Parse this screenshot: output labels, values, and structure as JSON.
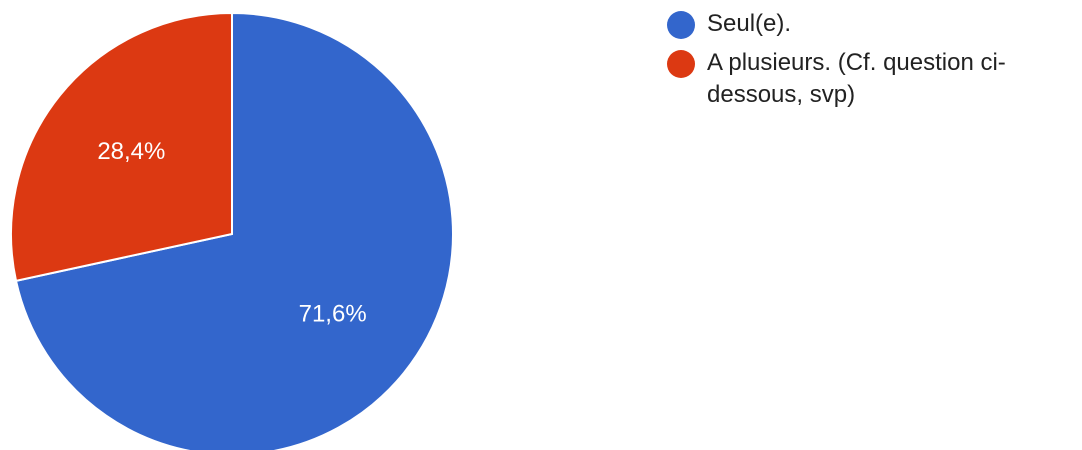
{
  "chart_data": {
    "type": "pie",
    "categories": [
      "Seul(e).",
      "A plusieurs. (Cf. question ci-dessous, svp)"
    ],
    "values": [
      71.6,
      28.4
    ],
    "data_labels": [
      "71,6%",
      "28,4%"
    ],
    "colors": [
      "#3366cc",
      "#dc3912"
    ],
    "legend_position": "right",
    "start_angle": "12-o'clock, clockwise"
  },
  "legend": {
    "items": [
      {
        "label": "Seul(e).",
        "color": "#3366cc"
      },
      {
        "label": "A plusieurs. (Cf. question ci-dessous, svp)",
        "color": "#dc3912"
      }
    ]
  }
}
